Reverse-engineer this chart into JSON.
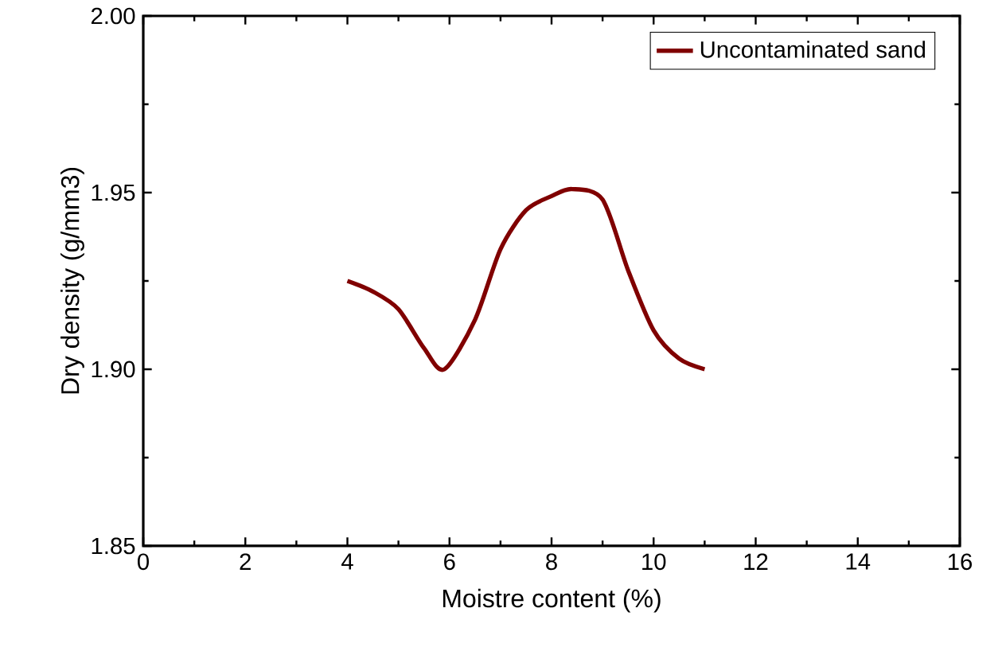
{
  "chart_data": {
    "type": "line",
    "xlabel": "Moistre content (%)",
    "ylabel": "Dry density (g/mm3)",
    "xlim": [
      0,
      16
    ],
    "xticks": [
      0,
      2,
      4,
      6,
      8,
      10,
      12,
      14,
      16
    ],
    "ylim": [
      1.85,
      2.0
    ],
    "yticks": [
      {
        "value": 1.85,
        "label": "1.85"
      },
      {
        "value": 1.9,
        "label": "1.90"
      },
      {
        "value": 1.95,
        "label": "1.95"
      },
      {
        "value": 2.0,
        "label": "2.00"
      }
    ],
    "series": [
      {
        "name": "Uncontaminated sand",
        "color": "#800000",
        "x": [
          4,
          4.5,
          5,
          5.5,
          5.9,
          6.5,
          7,
          7.5,
          8,
          8.4,
          9,
          9.5,
          10,
          10.5,
          11
        ],
        "values": [
          1.925,
          1.922,
          1.917,
          1.906,
          1.9,
          1.914,
          1.934,
          1.945,
          1.949,
          1.951,
          1.948,
          1.928,
          1.911,
          1.903,
          1.9
        ]
      }
    ],
    "legend": "top right",
    "grid": false,
    "marker": "none",
    "line_style": "solid"
  }
}
